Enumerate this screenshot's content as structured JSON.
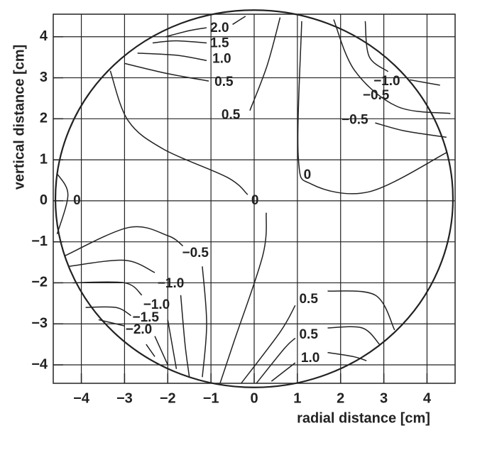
{
  "chart_data": {
    "type": "contour",
    "x_label": "radial distance [cm]",
    "y_label": "vertical distance [cm]",
    "xlim": [
      -4.65,
      4.65
    ],
    "ylim": [
      -4.45,
      4.55
    ],
    "xticks": [
      {
        "value": -4,
        "label": "−4"
      },
      {
        "value": -3,
        "label": "−3"
      },
      {
        "value": -2,
        "label": "−2"
      },
      {
        "value": -1,
        "label": "−1"
      },
      0,
      1,
      2,
      3,
      4
    ],
    "yticks": [
      {
        "value": -4,
        "label": "−4"
      },
      {
        "value": -3,
        "label": "−3"
      },
      {
        "value": -2,
        "label": "−2"
      },
      {
        "value": -1,
        "label": "−1"
      },
      0,
      1,
      2,
      3,
      4
    ],
    "grid": true,
    "color": "#222222",
    "boundary": {
      "cx": 0,
      "cy": 0.05,
      "r": 4.6
    },
    "contours": [
      {
        "x": [
          -2.05,
          -1.5,
          -1.1,
          null,
          -0.5,
          -0.2
        ],
        "y": [
          4.0,
          4.15,
          4.22,
          null,
          4.3,
          4.5
        ]
      },
      {
        "x": [
          -2.35,
          -1.8,
          -1.1
        ],
        "y": [
          3.85,
          3.9,
          3.85
        ]
      },
      {
        "x": [
          -2.7,
          -1.8,
          -1.1
        ],
        "y": [
          3.6,
          3.55,
          3.42
        ]
      },
      {
        "x": [
          -3.0,
          -2.0,
          -1.05
        ],
        "y": [
          3.35,
          3.1,
          2.92
        ]
      },
      {
        "x": [
          -0.1,
          0.3,
          0.6
        ],
        "y": [
          2.2,
          3.3,
          4.47
        ]
      },
      {
        "x": [
          -3.33,
          -2.92,
          -2.1,
          -0.62,
          -0.15,
          null,
          0.28,
          0.2,
          -0.46,
          -0.79
        ],
        "y": [
          3.17,
          1.96,
          1.26,
          0.57,
          0.15,
          null,
          -0.29,
          -1.33,
          -3.41,
          -4.45
        ]
      },
      {
        "x": [
          1.1,
          1.02,
          1.34,
          2.66,
          4.46
        ],
        "y": [
          4.38,
          1.09,
          0.4,
          0.22,
          1.18
        ]
      },
      {
        "x": [
          -4.56,
          -4.31,
          -4.56
        ],
        "y": [
          0.66,
          0.15,
          -0.81
        ]
      },
      {
        "x": [
          1.84,
          2.33,
          3.31,
          4.54
        ],
        "y": [
          4.42,
          3.17,
          2.3,
          2.13
        ]
      },
      {
        "x": [
          2.57,
          2.66,
          3.1,
          null,
          3.6,
          4.3
        ],
        "y": [
          4.38,
          3.52,
          3.15,
          null,
          2.95,
          2.82
        ]
      },
      {
        "x": [
          2.8,
          3.5,
          4.45
        ],
        "y": [
          1.9,
          1.7,
          1.55
        ]
      },
      {
        "x": [
          -4.4,
          -2.9,
          -2.0,
          -1.65,
          null,
          -1.2,
          -1.1,
          -1.2
        ],
        "y": [
          -1.35,
          -0.65,
          -0.85,
          -1.1,
          null,
          -1.6,
          -3.0,
          -4.3
        ]
      },
      {
        "x": [
          -4.3,
          -3.0,
          -2.3,
          null,
          -1.7,
          -1.6,
          -1.5
        ],
        "y": [
          -1.6,
          -1.45,
          -1.75,
          null,
          -2.3,
          -3.5,
          -4.3
        ]
      },
      {
        "x": [
          -4.2,
          -3.0,
          -2.6,
          null,
          -2.0,
          -1.8
        ],
        "y": [
          -2.0,
          -2.0,
          -2.3,
          null,
          -2.9,
          -4.1
        ]
      },
      {
        "x": [
          -3.9,
          -3.2,
          -2.85,
          null,
          -2.3,
          -2.0
        ],
        "y": [
          -2.6,
          -2.6,
          -2.8,
          null,
          -3.3,
          -4.0
        ]
      },
      {
        "x": [
          -3.6,
          -3.0,
          null,
          -2.5,
          -2.3
        ],
        "y": [
          -2.9,
          -3.05,
          null,
          -3.5,
          -3.8
        ]
      },
      {
        "x": [
          -0.3,
          0.6,
          0.95,
          null,
          1.7,
          2.8,
          3.25
        ],
        "y": [
          -4.45,
          -3.2,
          -2.55,
          null,
          -2.2,
          -2.3,
          -3.15
        ]
      },
      {
        "x": [
          0.05,
          0.7,
          0.95,
          null,
          1.7,
          2.5,
          2.9
        ],
        "y": [
          -4.45,
          -3.6,
          -3.35,
          null,
          -3.1,
          -3.1,
          -3.5
        ]
      },
      {
        "x": [
          0.4,
          0.95,
          null,
          1.7,
          2.3,
          2.6
        ],
        "y": [
          -4.4,
          -3.95,
          null,
          -3.7,
          -3.8,
          -3.9
        ]
      }
    ],
    "contour_labels": [
      {
        "value": 2,
        "label": "2.0",
        "x": -0.8,
        "y": 4.2
      },
      {
        "value": 1.5,
        "label": "1.5",
        "x": -0.8,
        "y": 3.83
      },
      {
        "value": 1,
        "label": "1.0",
        "x": -0.75,
        "y": 3.45
      },
      {
        "value": 0.5,
        "label": "0.5",
        "x": -0.7,
        "y": 2.89
      },
      {
        "value": 0.5,
        "label": "0.5",
        "x": -0.54,
        "y": 2.08
      },
      {
        "value": 0,
        "label": "0",
        "x": 0.02,
        "y": 0
      },
      {
        "value": 0,
        "label": "0",
        "x": 1.23,
        "y": 0.62
      },
      {
        "value": 0,
        "label": "0",
        "x": -4.1,
        "y": 0
      },
      {
        "value": -1,
        "label": "−1.0",
        "x": 3.07,
        "y": 2.91
      },
      {
        "value": -0.5,
        "label": "−0.5",
        "x": 2.82,
        "y": 2.56
      },
      {
        "value": -0.5,
        "label": "−0.5",
        "x": 2.33,
        "y": 1.96
      },
      {
        "value": -0.5,
        "label": "−0.5",
        "x": -1.36,
        "y": -1.28
      },
      {
        "value": -1,
        "label": "−1.0",
        "x": -1.93,
        "y": -2.03
      },
      {
        "value": -1,
        "label": "−1.0",
        "x": -2.26,
        "y": -2.55
      },
      {
        "value": -1.5,
        "label": "−1.5",
        "x": -2.51,
        "y": -2.86
      },
      {
        "value": -2,
        "label": "−2.0",
        "x": -2.67,
        "y": -3.15
      },
      {
        "value": 0.5,
        "label": "0.5",
        "x": 1.26,
        "y": -2.41
      },
      {
        "value": 0.5,
        "label": "0.5",
        "x": 1.26,
        "y": -3.27
      },
      {
        "value": 1,
        "label": "1.0",
        "x": 1.3,
        "y": -3.84
      }
    ]
  }
}
